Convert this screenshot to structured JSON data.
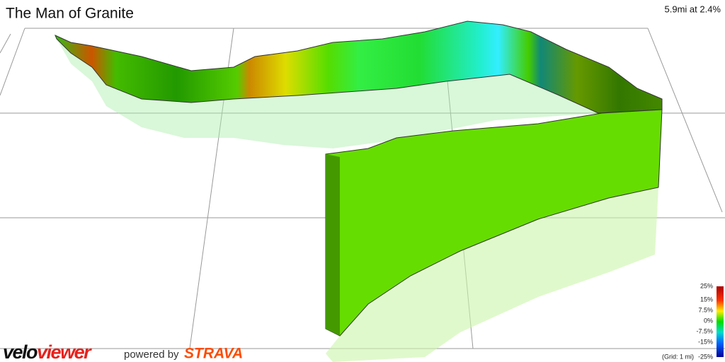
{
  "header": {
    "title": "The Man of Granite",
    "stats": "5.9mi at 2.4%"
  },
  "legend": {
    "labels": [
      "25%",
      "15%",
      "7.5%",
      "0%",
      "-7.5%",
      "-15%",
      "-25%"
    ],
    "grid_note": "(Grid: 1 mi)"
  },
  "footer": {
    "logo_velo": "velo",
    "logo_viewer": "viewer",
    "powered_by": "powered by",
    "strava": "STRAVA"
  }
}
